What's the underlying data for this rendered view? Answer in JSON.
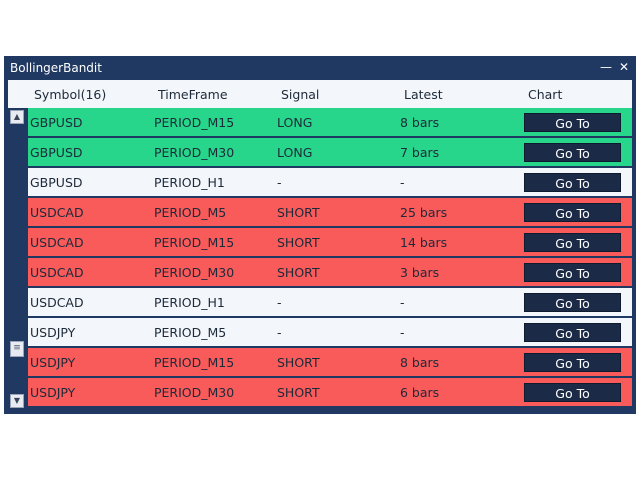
{
  "window": {
    "title": "BollingerBandit",
    "minimize_glyph": "—",
    "close_glyph": "✕"
  },
  "header": {
    "symbol": "Symbol(16)",
    "timeframe": "TimeFrame",
    "signal": "Signal",
    "latest": "Latest",
    "chart": "Chart"
  },
  "scrollbar": {
    "up_glyph": "▲",
    "down_glyph": "▼",
    "thumb_glyph": "≡"
  },
  "colors": {
    "long": "#27d68a",
    "short": "#f95a5a",
    "neutral": "#f3f6fa",
    "frame": "#203962",
    "button": "#1b2a47"
  },
  "rows": [
    {
      "symbol": "GBPUSD",
      "timeframe": "PERIOD_M15",
      "signal": "LONG",
      "latest": "8 bars",
      "action": "Go To"
    },
    {
      "symbol": "GBPUSD",
      "timeframe": "PERIOD_M30",
      "signal": "LONG",
      "latest": "7 bars",
      "action": "Go To"
    },
    {
      "symbol": "GBPUSD",
      "timeframe": "PERIOD_H1",
      "signal": "-",
      "latest": "-",
      "action": "Go To"
    },
    {
      "symbol": "USDCAD",
      "timeframe": "PERIOD_M5",
      "signal": "SHORT",
      "latest": "25 bars",
      "action": "Go To"
    },
    {
      "symbol": "USDCAD",
      "timeframe": "PERIOD_M15",
      "signal": "SHORT",
      "latest": "14 bars",
      "action": "Go To"
    },
    {
      "symbol": "USDCAD",
      "timeframe": "PERIOD_M30",
      "signal": "SHORT",
      "latest": "3 bars",
      "action": "Go To"
    },
    {
      "symbol": "USDCAD",
      "timeframe": "PERIOD_H1",
      "signal": "-",
      "latest": "-",
      "action": "Go To"
    },
    {
      "symbol": "USDJPY",
      "timeframe": "PERIOD_M5",
      "signal": "-",
      "latest": "-",
      "action": "Go To"
    },
    {
      "symbol": "USDJPY",
      "timeframe": "PERIOD_M15",
      "signal": "SHORT",
      "latest": "8 bars",
      "action": "Go To"
    },
    {
      "symbol": "USDJPY",
      "timeframe": "PERIOD_M30",
      "signal": "SHORT",
      "latest": "6 bars",
      "action": "Go To"
    }
  ]
}
